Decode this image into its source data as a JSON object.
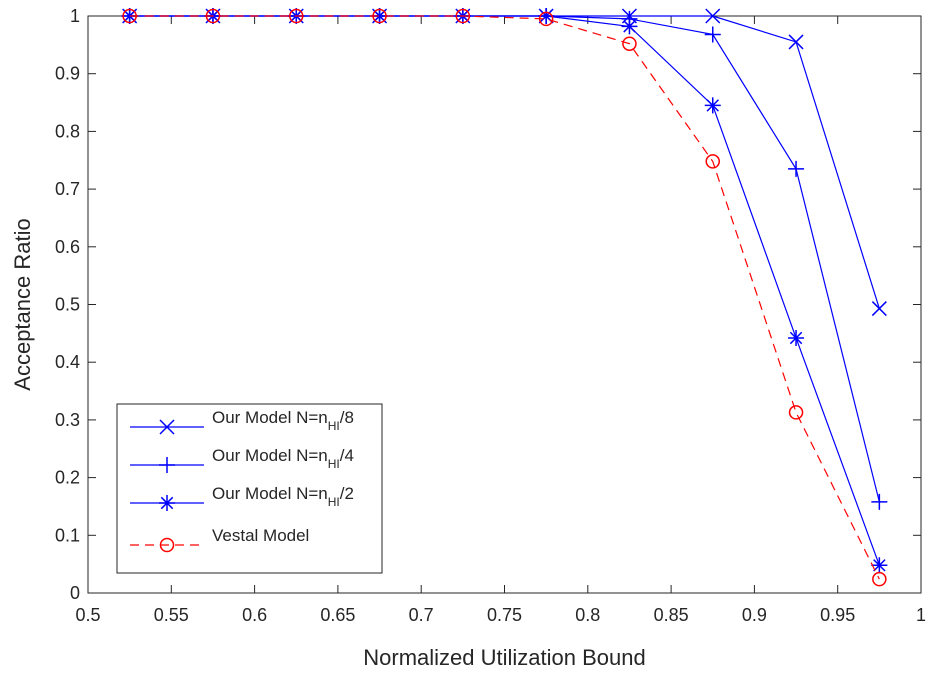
{
  "chart_data": {
    "type": "line",
    "title": "",
    "xlabel": "Normalized Utilization Bound",
    "ylabel": "Acceptance Ratio",
    "xlim": [
      0.5,
      1
    ],
    "ylim": [
      0,
      1
    ],
    "xticks": [
      0.5,
      0.55,
      0.6,
      0.65,
      0.7,
      0.75,
      0.8,
      0.85,
      0.9,
      0.95,
      1
    ],
    "xtick_labels": [
      "0.5",
      "0.55",
      "0.6",
      "0.65",
      "0.7",
      "0.75",
      "0.8",
      "0.85",
      "0.9",
      "0.95",
      "1"
    ],
    "yticks": [
      0,
      0.1,
      0.2,
      0.3,
      0.4,
      0.5,
      0.6,
      0.7,
      0.8,
      0.9,
      1
    ],
    "ytick_labels": [
      "0",
      "0.1",
      "0.2",
      "0.3",
      "0.4",
      "0.5",
      "0.6",
      "0.7",
      "0.8",
      "0.9",
      "1"
    ],
    "grid": false,
    "legend_position": "lower-left",
    "x": [
      0.525,
      0.575,
      0.625,
      0.675,
      0.725,
      0.775,
      0.825,
      0.875,
      0.925,
      0.975
    ],
    "series": [
      {
        "name": "Our Model N=n_HI/8",
        "legend_main": "Our Model N=n",
        "legend_sub": "HI",
        "legend_tail": "/8",
        "values": [
          1,
          1,
          1,
          1,
          1,
          1,
          1,
          1,
          0.955,
          0.493
        ],
        "color": "#0000ff",
        "marker": "x",
        "dash": "solid"
      },
      {
        "name": "Our Model N=n_HI/4",
        "legend_main": "Our Model N=n",
        "legend_sub": "HI",
        "legend_tail": "/4",
        "values": [
          1,
          1,
          1,
          1,
          1,
          1,
          0.995,
          0.968,
          0.735,
          0.158
        ],
        "color": "#0000ff",
        "marker": "+",
        "dash": "solid"
      },
      {
        "name": "Our Model N=n_HI/2",
        "legend_main": "Our Model N=n",
        "legend_sub": "HI",
        "legend_tail": "/2",
        "values": [
          1,
          1,
          1,
          1,
          1,
          1,
          0.982,
          0.845,
          0.442,
          0.048
        ],
        "color": "#0000ff",
        "marker": "*",
        "dash": "solid"
      },
      {
        "name": "Vestal Model",
        "legend_main": "Vestal Model",
        "legend_sub": "",
        "legend_tail": "",
        "values": [
          1,
          1,
          1,
          1,
          1,
          0.995,
          0.952,
          0.748,
          0.313,
          0.024
        ],
        "color": "#ff0000",
        "marker": "o",
        "dash": "dashed"
      }
    ]
  }
}
